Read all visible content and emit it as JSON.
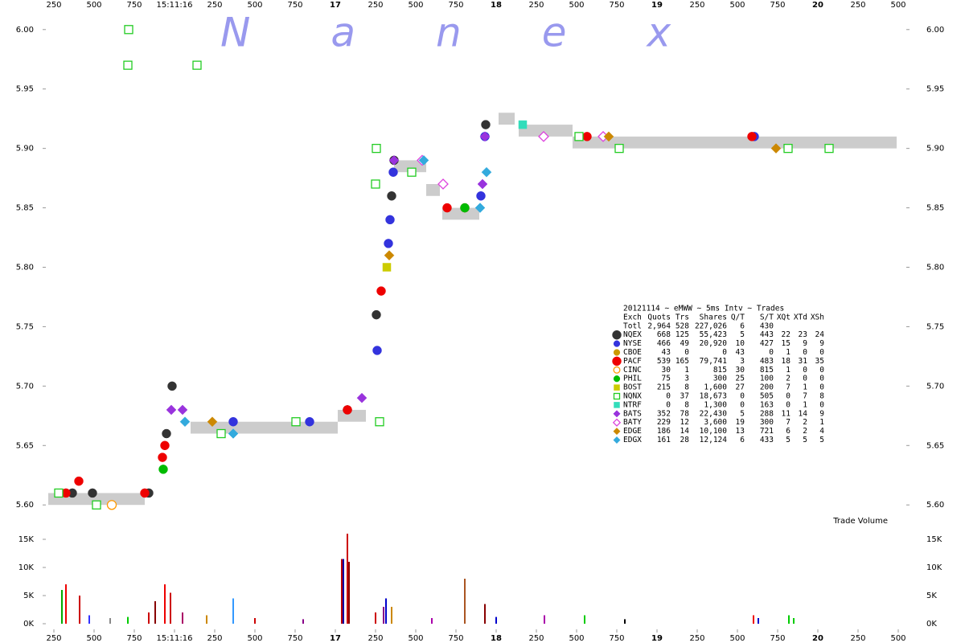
{
  "chart_data": {
    "type": "trades",
    "watermark": "Nanex",
    "xlim": [
      15.2,
      20.55
    ],
    "xticks": [
      {
        "value": 15.25,
        "label": "250"
      },
      {
        "value": 15.5,
        "label": "500"
      },
      {
        "value": 15.75,
        "label": "750"
      },
      {
        "value": 16,
        "label": "15:11:16"
      },
      {
        "value": 16.25,
        "label": "250"
      },
      {
        "value": 16.5,
        "label": "500"
      },
      {
        "value": 16.75,
        "label": "750"
      },
      {
        "value": 17,
        "label": "17"
      },
      {
        "value": 17.25,
        "label": "250"
      },
      {
        "value": 17.5,
        "label": "500"
      },
      {
        "value": 17.75,
        "label": "750"
      },
      {
        "value": 18,
        "label": "18"
      },
      {
        "value": 18.25,
        "label": "250"
      },
      {
        "value": 18.5,
        "label": "500"
      },
      {
        "value": 18.75,
        "label": "750"
      },
      {
        "value": 19,
        "label": "19"
      },
      {
        "value": 19.25,
        "label": "250"
      },
      {
        "value": 19.5,
        "label": "500"
      },
      {
        "value": 19.75,
        "label": "750"
      },
      {
        "value": 20,
        "label": "20"
      },
      {
        "value": 20.25,
        "label": "250"
      },
      {
        "value": 20.5,
        "label": "500"
      }
    ],
    "ylim": [
      5.59,
      6.01
    ],
    "yticks": [
      {
        "value": 5.6,
        "label": "5.60"
      },
      {
        "value": 5.65,
        "label": "5.65"
      },
      {
        "value": 5.7,
        "label": "5.70"
      },
      {
        "value": 5.75,
        "label": "5.75"
      },
      {
        "value": 5.8,
        "label": "5.80"
      },
      {
        "value": 5.85,
        "label": "5.85"
      },
      {
        "value": 5.9,
        "label": "5.90"
      },
      {
        "value": 5.95,
        "label": "5.95"
      },
      {
        "value": 6,
        "label": "6.00"
      }
    ],
    "nbbo": {
      "color": "#cccccc",
      "x_start": [
        15.215,
        16.1,
        17.015,
        17.365,
        17.565,
        17.665,
        18.015,
        18.14,
        18.475
      ],
      "x_end": [
        15.815,
        17.015,
        17.19,
        17.565,
        17.65,
        17.895,
        18.115,
        18.475,
        20.49
      ],
      "bid": [
        5.6,
        5.66,
        5.67,
        5.88,
        5.86,
        5.84,
        5.92,
        5.91,
        5.9
      ],
      "ask": [
        5.61,
        5.67,
        5.68,
        5.89,
        5.87,
        5.85,
        5.93,
        5.92,
        5.91
      ]
    },
    "stats_title": "20121114 ~ eMWW ~ 5ms Intv ~ Trades",
    "stats_columns": [
      "Exch",
      "Quots",
      "Trs",
      "Shares",
      "Q/T",
      "S/T",
      "XQt",
      "XTd",
      "XSh"
    ],
    "total": {
      "name": "Totl",
      "stats": [
        "2,964",
        "528",
        "227,026",
        "6",
        "430"
      ]
    },
    "series": [
      {
        "name": "NQEX",
        "color": "#333333",
        "shape": "circle",
        "hollow": false,
        "stats": [
          "668",
          "125",
          "55,423",
          "5",
          "443",
          "22",
          "23",
          "24"
        ],
        "x": [
          15.365,
          15.49,
          15.84,
          15.95,
          15.985,
          17.075,
          17.255,
          17.35,
          17.365,
          17.935
        ],
        "values": [
          5.61,
          5.61,
          5.61,
          5.66,
          5.7,
          5.68,
          5.76,
          5.86,
          5.89,
          5.92
        ]
      },
      {
        "name": "NYSE",
        "color": "#3333dd",
        "shape": "circle",
        "hollow": false,
        "stats": [
          "466",
          "49",
          "20,920",
          "10",
          "427",
          "15",
          "9",
          "9"
        ],
        "x": [
          16.365,
          16.84,
          17.26,
          17.33,
          17.34,
          17.36,
          17.905,
          17.93,
          19.605
        ],
        "values": [
          5.67,
          5.67,
          5.73,
          5.82,
          5.84,
          5.88,
          5.86,
          5.91,
          5.91
        ]
      },
      {
        "name": "CBOE",
        "color": "#cc9900",
        "shape": "circle",
        "hollow": false,
        "stats": [
          "43",
          "0",
          "0",
          "43",
          "0",
          "1",
          "0",
          "0"
        ],
        "x": [],
        "values": []
      },
      {
        "name": "PACF",
        "color": "#ee0000",
        "shape": "circle",
        "hollow": false,
        "stats": [
          "539",
          "165",
          "79,741",
          "3",
          "483",
          "18",
          "31",
          "35"
        ],
        "x": [
          15.325,
          15.405,
          15.815,
          15.925,
          15.94,
          17.075,
          17.285,
          17.695,
          17.805,
          18.565,
          19.59
        ],
        "values": [
          5.61,
          5.62,
          5.61,
          5.64,
          5.65,
          5.68,
          5.78,
          5.85,
          5.85,
          5.91,
          5.91
        ]
      },
      {
        "name": "CINC",
        "color": "#ff9900",
        "shape": "circle",
        "hollow": true,
        "stats": [
          "30",
          "1",
          "815",
          "30",
          "815",
          "1",
          "0",
          "0"
        ],
        "x": [
          15.61
        ],
        "values": [
          5.6
        ]
      },
      {
        "name": "PHIL",
        "color": "#00bb00",
        "shape": "circle",
        "hollow": false,
        "stats": [
          "75",
          "3",
          "300",
          "25",
          "100",
          "2",
          "0",
          "0"
        ],
        "x": [
          15.93,
          17.805
        ],
        "values": [
          5.63,
          5.85
        ]
      },
      {
        "name": "BOST",
        "color": "#cccc00",
        "shape": "square",
        "hollow": false,
        "stats": [
          "215",
          "8",
          "1,600",
          "27",
          "200",
          "7",
          "1",
          "0"
        ],
        "x": [
          17.32
        ],
        "values": [
          5.8
        ]
      },
      {
        "name": "NQNX",
        "color": "#22cc22",
        "shape": "square",
        "hollow": true,
        "stats": [
          "0",
          "37",
          "18,673",
          "0",
          "505",
          "0",
          "7",
          "8"
        ],
        "x": [
          15.28,
          15.515,
          15.71,
          15.715,
          16.14,
          16.29,
          16.755,
          17.25,
          17.255,
          17.275,
          17.475,
          18.515,
          18.765,
          19.815,
          20.07
        ],
        "values": [
          5.61,
          5.6,
          5.97,
          6.0,
          5.97,
          5.66,
          5.67,
          5.87,
          5.9,
          5.67,
          5.88,
          5.91,
          5.9,
          5.9,
          5.9
        ]
      },
      {
        "name": "NTRF",
        "color": "#33ddbb",
        "shape": "square",
        "hollow": false,
        "stats": [
          "0",
          "8",
          "1,300",
          "0",
          "163",
          "0",
          "1",
          "0"
        ],
        "x": [
          18.165
        ],
        "values": [
          5.92
        ]
      },
      {
        "name": "BATS",
        "color": "#9933dd",
        "shape": "diamond",
        "hollow": false,
        "stats": [
          "352",
          "78",
          "22,430",
          "5",
          "288",
          "11",
          "14",
          "9"
        ],
        "x": [
          15.98,
          16.05,
          17.165,
          17.365,
          17.915,
          17.93
        ],
        "values": [
          5.68,
          5.68,
          5.69,
          5.89,
          5.87,
          5.91
        ]
      },
      {
        "name": "BATY",
        "color": "#dd44dd",
        "shape": "diamond",
        "hollow": true,
        "stats": [
          "229",
          "12",
          "3,600",
          "19",
          "300",
          "7",
          "2",
          "1"
        ],
        "x": [
          17.54,
          17.67,
          18.295,
          18.665
        ],
        "values": [
          5.89,
          5.87,
          5.91,
          5.91
        ]
      },
      {
        "name": "EDGE",
        "color": "#cc8800",
        "shape": "diamond",
        "hollow": false,
        "stats": [
          "186",
          "14",
          "10,100",
          "13",
          "721",
          "6",
          "2",
          "4"
        ],
        "x": [
          16.235,
          17.335,
          18.7,
          19.74
        ],
        "values": [
          5.67,
          5.81,
          5.91,
          5.9
        ]
      },
      {
        "name": "EDGX",
        "color": "#33aadd",
        "shape": "diamond",
        "hollow": false,
        "stats": [
          "161",
          "28",
          "12,124",
          "6",
          "433",
          "5",
          "5",
          "5"
        ],
        "x": [
          16.065,
          16.365,
          17.55,
          17.9,
          17.94
        ],
        "values": [
          5.67,
          5.66,
          5.89,
          5.85,
          5.88
        ]
      }
    ],
    "volume": {
      "label": "Trade Volume",
      "ylim": [
        0,
        16000
      ],
      "yticks": [
        {
          "value": 0,
          "label": "0K"
        },
        {
          "value": 5000,
          "label": "5K"
        },
        {
          "value": 10000,
          "label": "10K"
        },
        {
          "value": 15000,
          "label": "15K"
        }
      ],
      "x": [
        15.3,
        15.325,
        15.41,
        15.47,
        15.6,
        15.71,
        15.84,
        15.88,
        15.94,
        15.975,
        16.05,
        16.2,
        16.365,
        16.5,
        16.8,
        17.04,
        17.05,
        17.075,
        17.085,
        17.25,
        17.3,
        17.315,
        17.35,
        17.6,
        17.805,
        17.93,
        18.0,
        18.3,
        18.55,
        18.8,
        19.6,
        19.63,
        19.82,
        19.85
      ],
      "values": [
        6000,
        7000,
        5000,
        1500,
        1000,
        1200,
        2000,
        4000,
        7000,
        5500,
        2000,
        1500,
        4500,
        1000,
        800,
        11500,
        11500,
        16000,
        11000,
        2000,
        3000,
        4500,
        3000,
        1000,
        8000,
        3500,
        1200,
        1500,
        1500,
        800,
        1500,
        1000,
        1500,
        1000
      ],
      "colors": [
        "#00aa00",
        "#ee0000",
        "#cc0000",
        "#3333ff",
        "#888888",
        "#00cc00",
        "#cc0000",
        "#880000",
        "#ee0000",
        "#cc0000",
        "#aa0066",
        "#cc8800",
        "#3399ff",
        "#cc0000",
        "#880088",
        "#bb0000",
        "#0000aa",
        "#cc0000",
        "#880000",
        "#cc0000",
        "#880088",
        "#0000cc",
        "#cc8800",
        "#aa00aa",
        "#aa5522",
        "#880000",
        "#0000cc",
        "#aa00aa",
        "#00cc00",
        "#000000",
        "#ee0000",
        "#0000cc",
        "#00cc00",
        "#00cc00"
      ]
    }
  }
}
